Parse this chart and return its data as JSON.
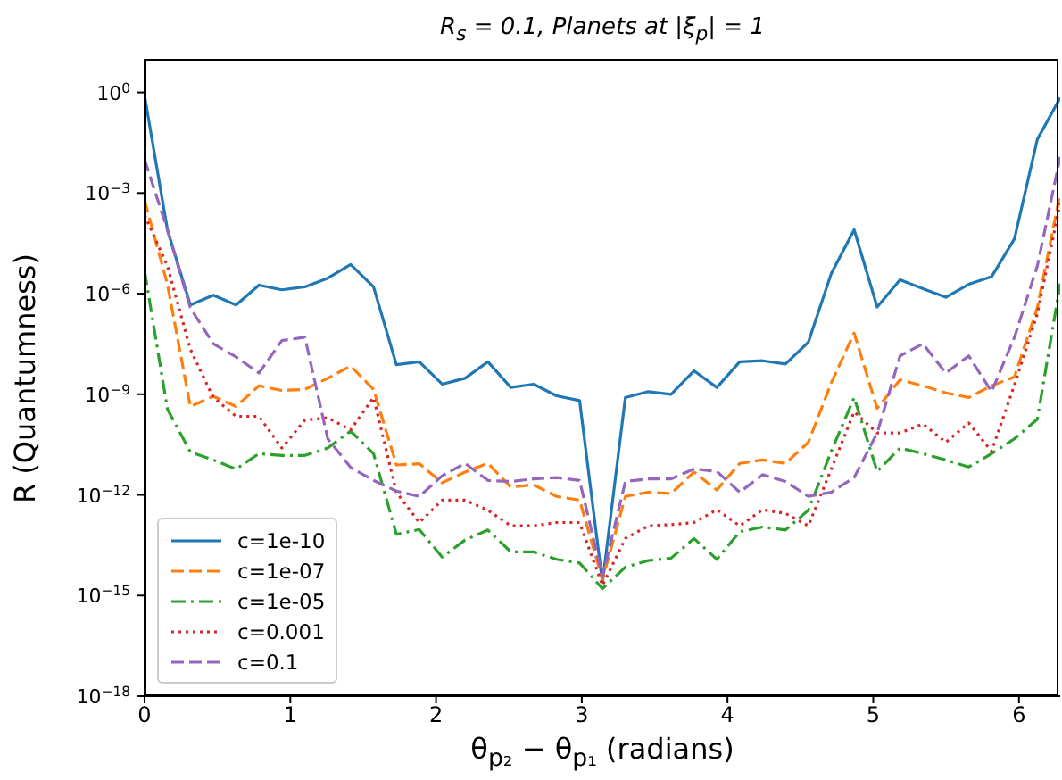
{
  "chart_data": {
    "type": "line",
    "title": "R$_{s}$ = 0.1, Planets at |ξ$_{p}$| = 1",
    "xlabel": "θ$_{p₂}$ − θ$_{p₁}$ (radians)",
    "ylabel": "R (Quantumness)",
    "x": [
      0,
      0.157,
      0.314,
      0.471,
      0.628,
      0.785,
      0.942,
      1.1,
      1.257,
      1.414,
      1.571,
      1.728,
      1.885,
      2.042,
      2.199,
      2.356,
      2.513,
      2.67,
      2.827,
      2.985,
      3.142,
      3.299,
      3.456,
      3.613,
      3.77,
      3.927,
      4.084,
      4.241,
      4.398,
      4.555,
      4.712,
      4.869,
      5.027,
      5.184,
      5.341,
      5.498,
      5.655,
      5.812,
      5.969,
      6.126,
      6.283
    ],
    "series": [
      {
        "name": "c=1e-10",
        "color": "#1f77b4",
        "line_style": "solid",
        "values": [
          0.8,
          8e-05,
          4.6e-07,
          9e-07,
          4.6e-07,
          1.8e-06,
          1.3e-06,
          1.6e-06,
          2.9e-06,
          7.4e-06,
          1.6e-06,
          7.6e-09,
          9.3e-09,
          2e-09,
          3e-09,
          9.3e-09,
          1.6e-09,
          2e-09,
          9e-10,
          6.5e-10,
          2.4e-15,
          8e-10,
          1.2e-09,
          1e-09,
          5e-09,
          1.6e-09,
          9.3e-09,
          1e-08,
          8e-09,
          3.6e-08,
          4e-06,
          8e-05,
          4e-07,
          2.6e-06,
          1.4e-06,
          7.8e-07,
          1.9e-06,
          3.2e-06,
          4.3e-05,
          0.04,
          0.7
        ]
      },
      {
        "name": "c=1e-07",
        "color": "#ff7f0e",
        "line_style": "dashed",
        "values": [
          0.0006,
          1.9e-06,
          4.3e-10,
          8.7e-10,
          4.3e-10,
          1.8e-09,
          1.3e-09,
          1.4e-09,
          3e-09,
          7e-09,
          1.4e-09,
          7.8e-12,
          8.5e-12,
          2.3e-12,
          4.8e-12,
          8.7e-12,
          1.7e-12,
          2e-12,
          9e-13,
          7e-13,
          3e-15,
          9e-13,
          1.2e-12,
          1.1e-12,
          4.8e-12,
          1.4e-12,
          8.7e-12,
          1.1e-11,
          8.7e-12,
          3.7e-11,
          2.2e-09,
          6.7e-08,
          3.8e-10,
          2.7e-09,
          1.8e-09,
          1.1e-09,
          8e-10,
          1.8e-09,
          3.3e-09,
          3.8e-07,
          0.001
        ]
      },
      {
        "name": "c=1e-05",
        "color": "#2ca02c",
        "line_style": "dashdot",
        "values": [
          4.8e-06,
          3.6e-10,
          1.9e-11,
          1.1e-11,
          5.9e-12,
          1.7e-11,
          1.5e-11,
          1.5e-11,
          2.5e-11,
          8e-11,
          1.7e-11,
          6.7e-14,
          9.3e-14,
          1.4e-14,
          4.5e-14,
          9e-14,
          2e-14,
          2e-14,
          1.2e-14,
          9.3e-15,
          1.6e-15,
          7e-15,
          1.1e-14,
          1.3e-14,
          5e-14,
          1.2e-14,
          8e-14,
          1.1e-13,
          9e-14,
          3.5e-13,
          2e-11,
          8e-10,
          5e-12,
          2.5e-11,
          1.7e-11,
          1.1e-11,
          6.8e-12,
          1.7e-11,
          4.7e-11,
          1.8e-10,
          2e-06
        ]
      },
      {
        "name": "c=0.001",
        "color": "#d62728",
        "line_style": "dotted",
        "values": [
          0.00022,
          6.7e-06,
          2.2e-08,
          8e-10,
          2.2e-10,
          2.2e-10,
          2.5e-11,
          1.7e-10,
          2e-10,
          8.7e-11,
          8e-10,
          1.2e-12,
          1.5e-13,
          7e-13,
          7e-13,
          3.5e-13,
          1.2e-13,
          1.2e-13,
          1.5e-13,
          1.5e-13,
          2e-15,
          5e-14,
          1.2e-13,
          1.3e-13,
          1.5e-13,
          3.6e-13,
          1.2e-13,
          3.6e-13,
          2.8e-13,
          1.2e-13,
          5.9e-12,
          3e-10,
          7e-11,
          7e-11,
          1.3e-10,
          3.7e-11,
          1.4e-10,
          2e-11,
          1.9e-09,
          2.5e-07,
          0.0005
        ]
      },
      {
        "name": "c=0.1",
        "color": "#9467bd",
        "line_style": "dashed",
        "values": [
          0.01,
          8e-05,
          3.8e-07,
          3.2e-08,
          1.3e-08,
          4.3e-09,
          4e-08,
          5e-08,
          4.7e-11,
          6.6e-12,
          2.7e-12,
          1.3e-12,
          9e-13,
          3.7e-12,
          8.7e-12,
          2.7e-12,
          2.5e-12,
          3e-12,
          3.3e-12,
          2.7e-12,
          3.6e-15,
          2.5e-12,
          3e-12,
          3e-12,
          5.9e-12,
          5e-12,
          1.2e-12,
          4e-12,
          2.5e-12,
          9e-13,
          1.2e-12,
          3.3e-12,
          7e-11,
          1.4e-08,
          3.2e-08,
          4.3e-09,
          1.4e-08,
          1.2e-09,
          5e-08,
          6.7e-06,
          0.012
        ]
      }
    ],
    "log": "y",
    "xlim": [
      0,
      6.283
    ],
    "xticks": [
      0,
      1,
      2,
      3,
      4,
      5,
      6
    ],
    "ylim": [
      1e-18,
      10
    ],
    "yticks": [
      {
        "value": 1e-18,
        "label": "10$^{−18}$"
      },
      {
        "value": 1e-15,
        "label": "10$^{−15}$"
      },
      {
        "value": 1e-12,
        "label": "10$^{−12}$"
      },
      {
        "value": 1e-09,
        "label": "10$^{−9}$"
      },
      {
        "value": 1e-06,
        "label": "10$^{−6}$"
      },
      {
        "value": 0.001,
        "label": "10$^{−3}$"
      },
      {
        "value": 1,
        "label": "10$^{0}$"
      }
    ],
    "grid": false,
    "legend": "bottom left",
    "marker": "none"
  }
}
